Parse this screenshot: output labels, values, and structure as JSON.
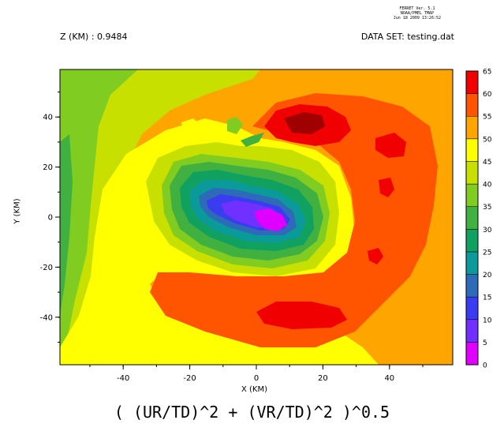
{
  "header": {
    "stamp_line1": "FERRET Ver. 5.1",
    "stamp_line2": "NOAA/PMEL TMAP",
    "stamp_line3": "Jun 18 2009 13:26:52",
    "z_label": "Z (KM) : 0.9484",
    "dataset_label": "DATA SET: testing.dat"
  },
  "variable_label": "( (UR/TD)^2 + (VR/TD)^2 )^0.5",
  "chart_data": {
    "type": "heatmap",
    "title": "",
    "xlabel": "X (KM)",
    "ylabel": "Y (KM)",
    "xlim": [
      -59,
      59
    ],
    "ylim": [
      -59,
      59
    ],
    "x_ticks": [
      -40,
      -20,
      0,
      20,
      40
    ],
    "y_ticks": [
      -40,
      -20,
      0,
      20,
      40
    ],
    "colorbar": {
      "levels": [
        0,
        5,
        10,
        15,
        20,
        25,
        30,
        35,
        40,
        45,
        50,
        55,
        60,
        65
      ],
      "colors": [
        "#e000ff",
        "#7030ff",
        "#3a3cf0",
        "#2d6bb8",
        "#0a9a9a",
        "#10a060",
        "#40b040",
        "#80cc20",
        "#c8e000",
        "#ffff00",
        "#ffa500",
        "#ff5500",
        "#f00000",
        "#a00000"
      ]
    },
    "field_description_regions": [
      {
        "level_index": 7,
        "cx": -55,
        "cy": 20,
        "rx": 10,
        "ry": 45
      },
      {
        "level_index": 8,
        "cx": -35,
        "cy": 40,
        "rx": 20,
        "ry": 15
      },
      {
        "level_index": 9,
        "cx": -25,
        "cy": -5,
        "rx": 38,
        "ry": 38
      },
      {
        "level_index": 10,
        "cx": 5,
        "cy": 0,
        "rx": 55,
        "ry": 50
      },
      {
        "level_index": 11,
        "cx": 20,
        "cy": -10,
        "rx": 40,
        "ry": 45
      },
      {
        "level_index": 12,
        "cx": 15,
        "cy": 45,
        "rx": 12,
        "ry": 6
      },
      {
        "level_index": 13,
        "cx": 10,
        "cy": 40,
        "rx": 8,
        "ry": 4
      }
    ]
  }
}
